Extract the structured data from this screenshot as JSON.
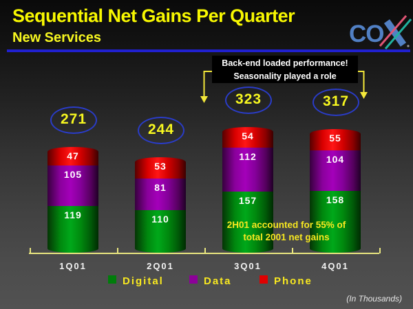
{
  "slide": {
    "title": "Sequential Net Gains Per Quarter",
    "subtitle": "New Services",
    "logo": "COX",
    "callout": {
      "line1": "Back-end loaded performance!",
      "line2": "Seasonality played a role"
    },
    "annotation": {
      "line1": "2H01 accounted for 55% of",
      "line2": "total 2001 net gains"
    },
    "footnote": "(In Thousands)"
  },
  "colors": {
    "title_yellow": "#f8f800",
    "divider_blue": "#2020cf",
    "axis_yellow": "#eae77f",
    "ellipse_blue": "#2a3cc8",
    "annotation_yellow": "#f8e820",
    "logo_blue": "#5180c4",
    "logo_red": "#e05575",
    "logo_green": "#20b2a0"
  },
  "chart_data": {
    "type": "bar",
    "stacked": true,
    "title": "Sequential Net Gains Per Quarter - New Services",
    "units_note": "(In Thousands)",
    "categories": [
      "1Q01",
      "2Q01",
      "3Q01",
      "4Q01"
    ],
    "series": [
      {
        "name": "Digital",
        "color": "#007d0a",
        "values": [
          119,
          110,
          157,
          158
        ]
      },
      {
        "name": "Data",
        "color": "#8d0099",
        "values": [
          105,
          81,
          112,
          104
        ]
      },
      {
        "name": "Phone",
        "color": "#e00000",
        "values": [
          47,
          53,
          54,
          55
        ]
      }
    ],
    "totals": [
      271,
      244,
      323,
      317
    ],
    "legend": [
      "Digital",
      "Data",
      "Phone"
    ],
    "legend_position": "bottom",
    "ylim": [
      0,
      340
    ],
    "grid": false
  }
}
